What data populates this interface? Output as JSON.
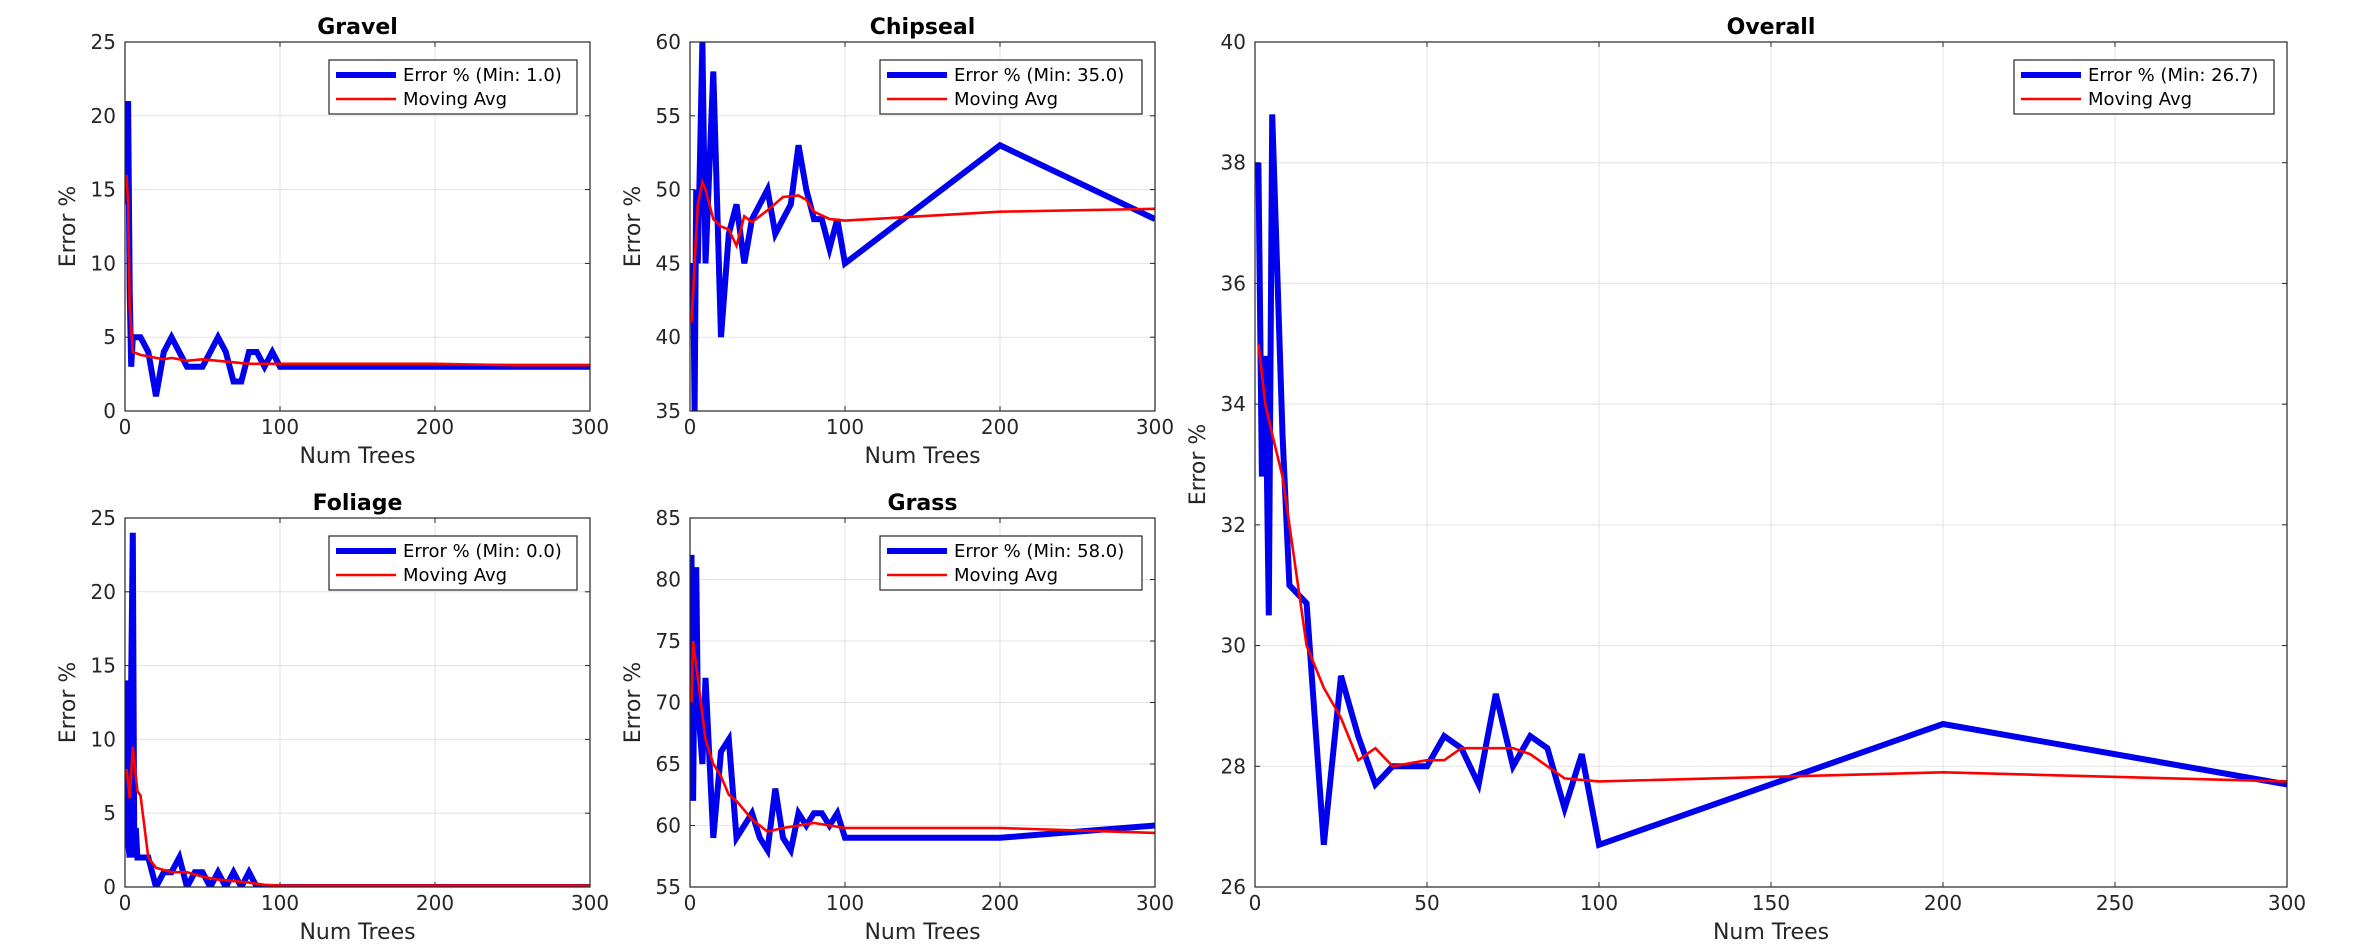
{
  "chart_data": [
    {
      "id": "gravel",
      "type": "line",
      "title": "Gravel",
      "xlabel": "Num Trees",
      "ylabel": "Error %",
      "xlim": [
        0,
        300
      ],
      "ylim": [
        0,
        25
      ],
      "xticks": [
        0,
        100,
        200,
        300
      ],
      "yticks": [
        0,
        5,
        10,
        15,
        20,
        25
      ],
      "grid": true,
      "legend": "top-right",
      "series": [
        {
          "name": "Error % (Min: 1.0)",
          "color": "#0000ee",
          "x": [
            1,
            2,
            3,
            4,
            5,
            10,
            15,
            20,
            25,
            30,
            35,
            40,
            45,
            50,
            55,
            60,
            65,
            70,
            75,
            80,
            85,
            90,
            95,
            100,
            200,
            300
          ],
          "y": [
            14,
            21,
            8,
            3,
            5,
            5,
            4,
            1,
            4,
            5,
            4,
            3,
            3,
            3,
            4,
            5,
            4,
            2,
            2,
            4,
            4,
            3,
            4,
            3,
            3,
            3
          ]
        },
        {
          "name": "Moving Avg",
          "color": "#ff0000",
          "x": [
            1,
            2,
            3,
            5,
            10,
            15,
            20,
            25,
            30,
            35,
            40,
            50,
            60,
            70,
            80,
            90,
            100,
            200,
            250,
            300
          ],
          "y": [
            16,
            14,
            7,
            4,
            3.8,
            3.7,
            3.6,
            3.5,
            3.6,
            3.5,
            3.4,
            3.5,
            3.4,
            3.3,
            3.2,
            3.2,
            3.2,
            3.2,
            3.1,
            3.1
          ]
        }
      ]
    },
    {
      "id": "chipseal",
      "type": "line",
      "title": "Chipseal",
      "xlabel": "Num Trees",
      "ylabel": "Error %",
      "xlim": [
        0,
        300
      ],
      "ylim": [
        35,
        60
      ],
      "xticks": [
        0,
        100,
        200,
        300
      ],
      "yticks": [
        35,
        40,
        45,
        50,
        55,
        60
      ],
      "grid": true,
      "legend": "top-right",
      "series": [
        {
          "name": "Error % (Min: 35.0)",
          "color": "#0000ee",
          "x": [
            1,
            2,
            3,
            4,
            5,
            8,
            10,
            15,
            20,
            25,
            30,
            35,
            40,
            45,
            50,
            55,
            60,
            65,
            70,
            75,
            80,
            85,
            90,
            95,
            100,
            200,
            300
          ],
          "y": [
            42,
            45,
            35,
            50,
            45,
            60,
            45,
            58,
            40,
            47,
            49,
            45,
            48,
            49,
            50,
            47,
            48,
            49,
            53,
            50,
            48,
            48,
            46,
            48,
            45,
            53,
            48
          ]
        },
        {
          "name": "Moving Avg",
          "color": "#ff0000",
          "x": [
            1,
            3,
            5,
            8,
            10,
            15,
            20,
            25,
            30,
            35,
            40,
            50,
            60,
            70,
            75,
            80,
            90,
            100,
            200,
            300
          ],
          "y": [
            41,
            45,
            49,
            50.5,
            50,
            48,
            47.5,
            47.3,
            46.2,
            48.2,
            47.8,
            48.6,
            49.5,
            49.6,
            49.3,
            48.5,
            48,
            47.9,
            48.5,
            48.7
          ]
        }
      ]
    },
    {
      "id": "foliage",
      "type": "line",
      "title": "Foliage",
      "xlabel": "Num Trees",
      "ylabel": "Error %",
      "xlim": [
        0,
        300
      ],
      "ylim": [
        0,
        25
      ],
      "xticks": [
        0,
        100,
        200,
        300
      ],
      "yticks": [
        0,
        5,
        10,
        15,
        20,
        25
      ],
      "grid": true,
      "legend": "top-right",
      "series": [
        {
          "name": "Error % (Min: 0.0)",
          "color": "#0000ee",
          "x": [
            1,
            2,
            3,
            4,
            5,
            6,
            7,
            8,
            10,
            15,
            20,
            25,
            30,
            35,
            40,
            45,
            50,
            55,
            60,
            65,
            70,
            75,
            80,
            85,
            90,
            100,
            200,
            300
          ],
          "y": [
            14,
            3,
            2,
            14,
            24,
            2,
            4,
            2,
            2,
            2,
            0,
            1,
            1,
            2,
            0,
            1,
            1,
            0,
            1,
            0,
            1,
            0,
            1,
            0,
            0,
            0,
            0,
            0
          ]
        },
        {
          "name": "Moving Avg",
          "color": "#ff0000",
          "x": [
            1,
            3,
            5,
            8,
            10,
            15,
            20,
            30,
            40,
            50,
            60,
            70,
            80,
            90,
            100,
            200,
            300
          ],
          "y": [
            8,
            6,
            9.5,
            6.5,
            6.2,
            2,
            1.3,
            1.0,
            1.0,
            0.7,
            0.5,
            0.4,
            0.3,
            0.15,
            0.1,
            0.1,
            0.1
          ]
        }
      ]
    },
    {
      "id": "grass",
      "type": "line",
      "title": "Grass",
      "xlabel": "Num Trees",
      "ylabel": "Error %",
      "xlim": [
        0,
        300
      ],
      "ylim": [
        55,
        85
      ],
      "xticks": [
        0,
        100,
        200,
        300
      ],
      "yticks": [
        55,
        60,
        65,
        70,
        75,
        80,
        85
      ],
      "grid": true,
      "legend": "top-right",
      "series": [
        {
          "name": "Error % (Min: 58.0)",
          "color": "#0000ee",
          "x": [
            1,
            2,
            3,
            4,
            5,
            8,
            10,
            15,
            20,
            25,
            30,
            35,
            40,
            45,
            50,
            55,
            60,
            65,
            70,
            75,
            80,
            85,
            90,
            95,
            100,
            200,
            300
          ],
          "y": [
            82,
            62,
            75,
            81,
            70,
            65,
            72,
            59,
            66,
            67,
            59,
            60,
            61,
            59,
            58,
            63,
            59,
            58,
            61,
            60,
            61,
            61,
            60,
            61,
            59,
            59,
            60
          ]
        },
        {
          "name": "Moving Avg",
          "color": "#ff0000",
          "x": [
            1,
            2,
            3,
            5,
            8,
            10,
            15,
            20,
            25,
            30,
            40,
            50,
            60,
            70,
            80,
            90,
            100,
            200,
            300
          ],
          "y": [
            70,
            75,
            74,
            72,
            69,
            67,
            65,
            64,
            62.5,
            62,
            60.5,
            59.5,
            59.8,
            60,
            60.2,
            60,
            59.8,
            59.8,
            59.4
          ]
        }
      ]
    },
    {
      "id": "overall",
      "type": "line",
      "title": "Overall",
      "xlabel": "Num Trees",
      "ylabel": "Error %",
      "xlim": [
        0,
        300
      ],
      "ylim": [
        26,
        40
      ],
      "xticks": [
        0,
        50,
        100,
        150,
        200,
        250,
        300
      ],
      "yticks": [
        26,
        28,
        30,
        32,
        34,
        36,
        38,
        40
      ],
      "grid": true,
      "legend": "top-right",
      "series": [
        {
          "name": "Error % (Min: 26.7)",
          "color": "#0000ee",
          "x": [
            1,
            2,
            3,
            4,
            5,
            8,
            10,
            15,
            20,
            25,
            30,
            35,
            40,
            45,
            50,
            55,
            60,
            65,
            70,
            75,
            80,
            85,
            90,
            95,
            100,
            200,
            300
          ],
          "y": [
            38,
            32.8,
            34.8,
            30.5,
            38.8,
            33.5,
            31,
            30.7,
            26.7,
            29.5,
            28.5,
            27.7,
            28,
            28,
            28,
            28.5,
            28.3,
            27.7,
            29.2,
            28,
            28.5,
            28.3,
            27.3,
            28.2,
            26.7,
            28.7,
            27.7
          ]
        },
        {
          "name": "Moving Avg",
          "color": "#ff0000",
          "x": [
            1,
            3,
            5,
            8,
            10,
            15,
            20,
            25,
            30,
            35,
            40,
            50,
            55,
            60,
            70,
            75,
            80,
            90,
            100,
            200,
            300
          ],
          "y": [
            35,
            34,
            33.5,
            32.8,
            32,
            30,
            29.3,
            28.8,
            28.1,
            28.3,
            28,
            28.1,
            28.1,
            28.3,
            28.3,
            28.3,
            28.2,
            27.8,
            27.75,
            27.9,
            27.75
          ]
        }
      ]
    }
  ]
}
